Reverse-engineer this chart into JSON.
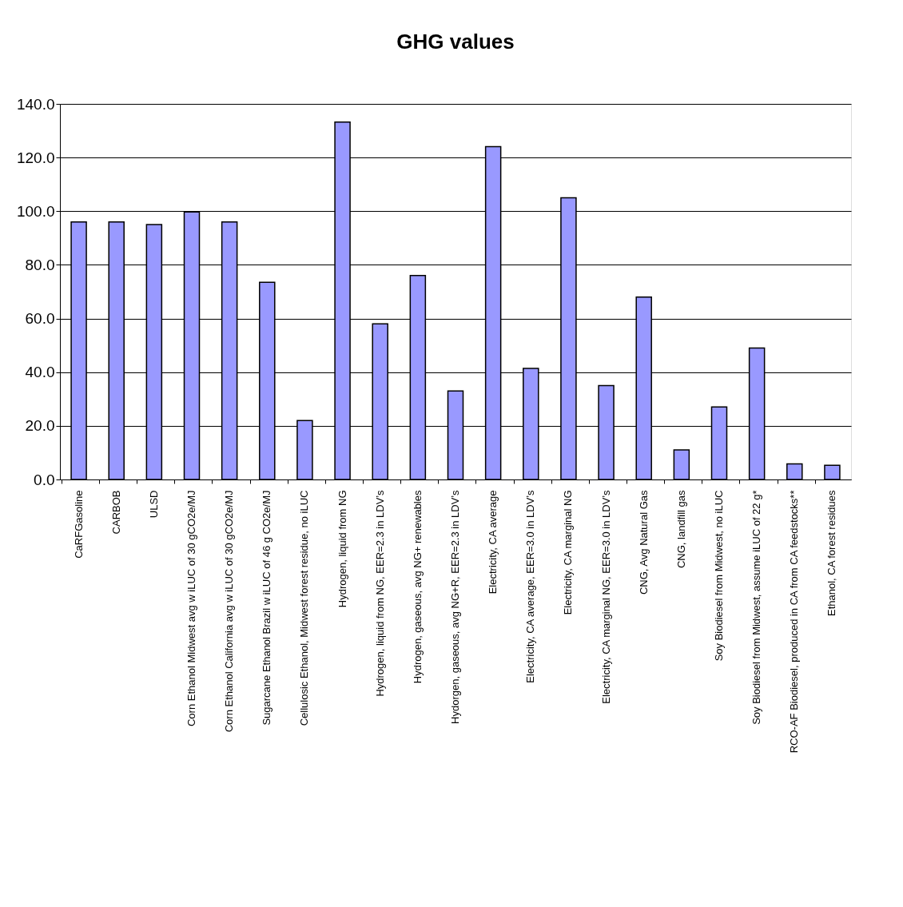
{
  "chart_data": {
    "type": "bar",
    "title": "GHG values",
    "categories": [
      "CaRFGasoline",
      "CARBOB",
      "ULSD",
      "Corn Ethanol Midwest avg w iLUC of 30 gCO2e/MJ",
      "Corn Ethanol California avg  w iLUC of 30 gCO2e/MJ",
      "Sugarcane Ethanol Brazil w iLUC of 46 g CO2e/MJ",
      "Cellulosic Ethanol, Midwest forest residue, no iLUC",
      "Hydrogen, liquid from NG",
      "Hydrogen, liquid from NG, EER=2.3 in LDV’s",
      "Hydrogen, gaseous, avg NG+ renewables",
      "Hydorgen, gaseous, avg NG+R, EER=2.3 in LDV’s",
      "Electricity, CA average",
      "Electricity, CA average, EER=3.0 in LDV’s",
      "Electricity, CA marginal NG",
      "Electricity, CA marginal NG, EER=3.0 in LDV’s",
      "CNG, Avg Natural Gas",
      "CNG, landfill gas",
      "Soy Biodiesel from Midwest, no iLUC",
      "Soy Biodiesel from Midwest, assume iLUC of 22 g*",
      "RCO-AF Biodiesel, produced in CA from CA feedstocks**",
      "Ethanol, CA forest residues"
    ],
    "values": [
      96,
      96,
      95,
      99.7,
      96,
      73.5,
      22,
      133.2,
      58,
      76,
      33,
      124.1,
      41.4,
      105,
      35,
      68,
      11,
      27,
      49,
      5.8,
      5.3
    ],
    "color": "#9999ff",
    "ylim": [
      0,
      140
    ],
    "yticks": [
      {
        "value": 0,
        "label": "0.0"
      },
      {
        "value": 20,
        "label": "20.0"
      },
      {
        "value": 40,
        "label": "40.0"
      },
      {
        "value": 60,
        "label": "60.0"
      },
      {
        "value": 80,
        "label": "80.0"
      },
      {
        "value": 100,
        "label": "100.0"
      },
      {
        "value": 120,
        "label": "120.0"
      },
      {
        "value": 140,
        "label": "140.0"
      }
    ],
    "grid": "y"
  }
}
